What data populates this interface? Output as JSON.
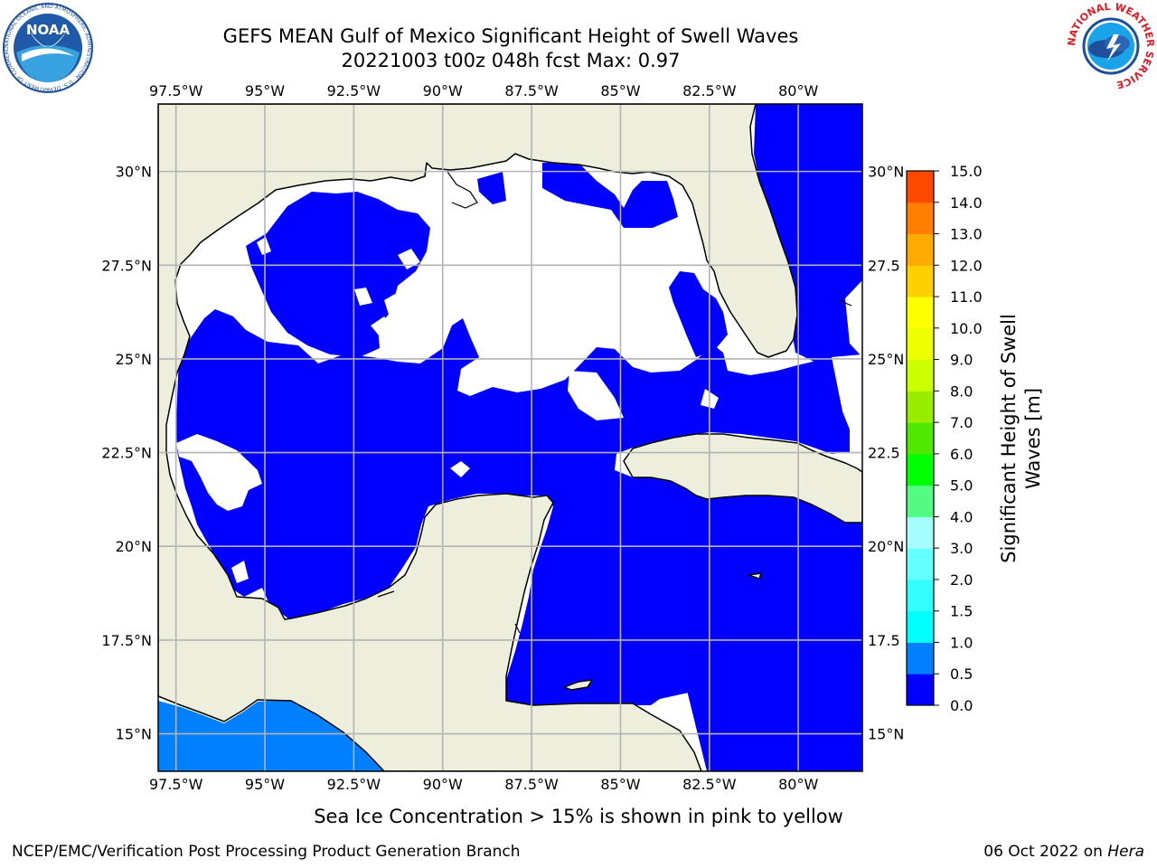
{
  "title": {
    "line1": "GEFS MEAN Gulf of Mexico Significant Height of Swell Waves",
    "line2": "20221003 t00z 048h fcst   Max: 0.97"
  },
  "footer": {
    "sea_ice_note": "Sea Ice Concentration > 15% is shown in pink to yellow",
    "credit_left": "NCEP/EMC/Verification Post Processing Product Generation Branch",
    "credit_date": "06 Oct 2022 on ",
    "credit_machine": "Hera"
  },
  "logos": {
    "noaa": "NOAA",
    "noaa_ring": "NATIONAL OCEANIC AND ATMOSPHERIC ADMINISTRATION · U.S. DEPARTMENT OF COMMERCE",
    "nws_ring": "NATIONAL WEATHER SERVICE"
  },
  "map": {
    "lon_ticks": [
      "97.5°W",
      "95°W",
      "92.5°W",
      "90°W",
      "87.5°W",
      "85°W",
      "82.5°W",
      "80°W"
    ],
    "lat_ticks": [
      "30°N",
      "27.5°N",
      "25°N",
      "22.5°N",
      "20°N",
      "17.5°N",
      "15°N"
    ],
    "lat_ticks_right": [
      "30°N",
      "27.5",
      "25°N",
      "22.5",
      "20°N",
      "17.5",
      "15°N"
    ],
    "colors": {
      "land": "#eeeedc",
      "sea_white": "#ffffff",
      "swell_0_05": "#0000ff",
      "swell_05_10": "#0080ff",
      "grid": "#b3b3b3"
    }
  },
  "colorbar": {
    "label_line1": "Significant Height of Swell",
    "label_line2": "Waves [m]",
    "ticks": [
      "0.0",
      "0.5",
      "1.0",
      "1.5",
      "2.0",
      "3.0",
      "4.0",
      "5.0",
      "6.0",
      "7.0",
      "8.0",
      "9.0",
      "10.0",
      "11.0",
      "12.0",
      "13.0",
      "14.0",
      "15.0"
    ],
    "colors": [
      "#0000ff",
      "#0080ff",
      "#00ffff",
      "#33ffff",
      "#66ffff",
      "#a6ffff",
      "#53fb83",
      "#00ff00",
      "#50e800",
      "#99ee00",
      "#ccff00",
      "#eeff00",
      "#ffff00",
      "#ffd000",
      "#ffaa00",
      "#ff7f00",
      "#ff4800",
      "#ff0000"
    ]
  },
  "chart_data": {
    "type": "heatmap",
    "title": "GEFS MEAN Gulf of Mexico Significant Height of Swell Waves",
    "subtitle": "20221003 t00z 048h fcst   Max: 0.97",
    "x_range_lon": [
      -98.0,
      -78.2
    ],
    "y_range_lat": [
      14.0,
      31.8
    ],
    "grid": true,
    "max_value": 0.97,
    "units": "m",
    "colorbar_levels": [
      0.0,
      0.5,
      1.0,
      1.5,
      2.0,
      3.0,
      4.0,
      5.0,
      6.0,
      7.0,
      8.0,
      9.0,
      10.0,
      11.0,
      12.0,
      13.0,
      14.0,
      15.0
    ],
    "legend_placement": "right"
  }
}
